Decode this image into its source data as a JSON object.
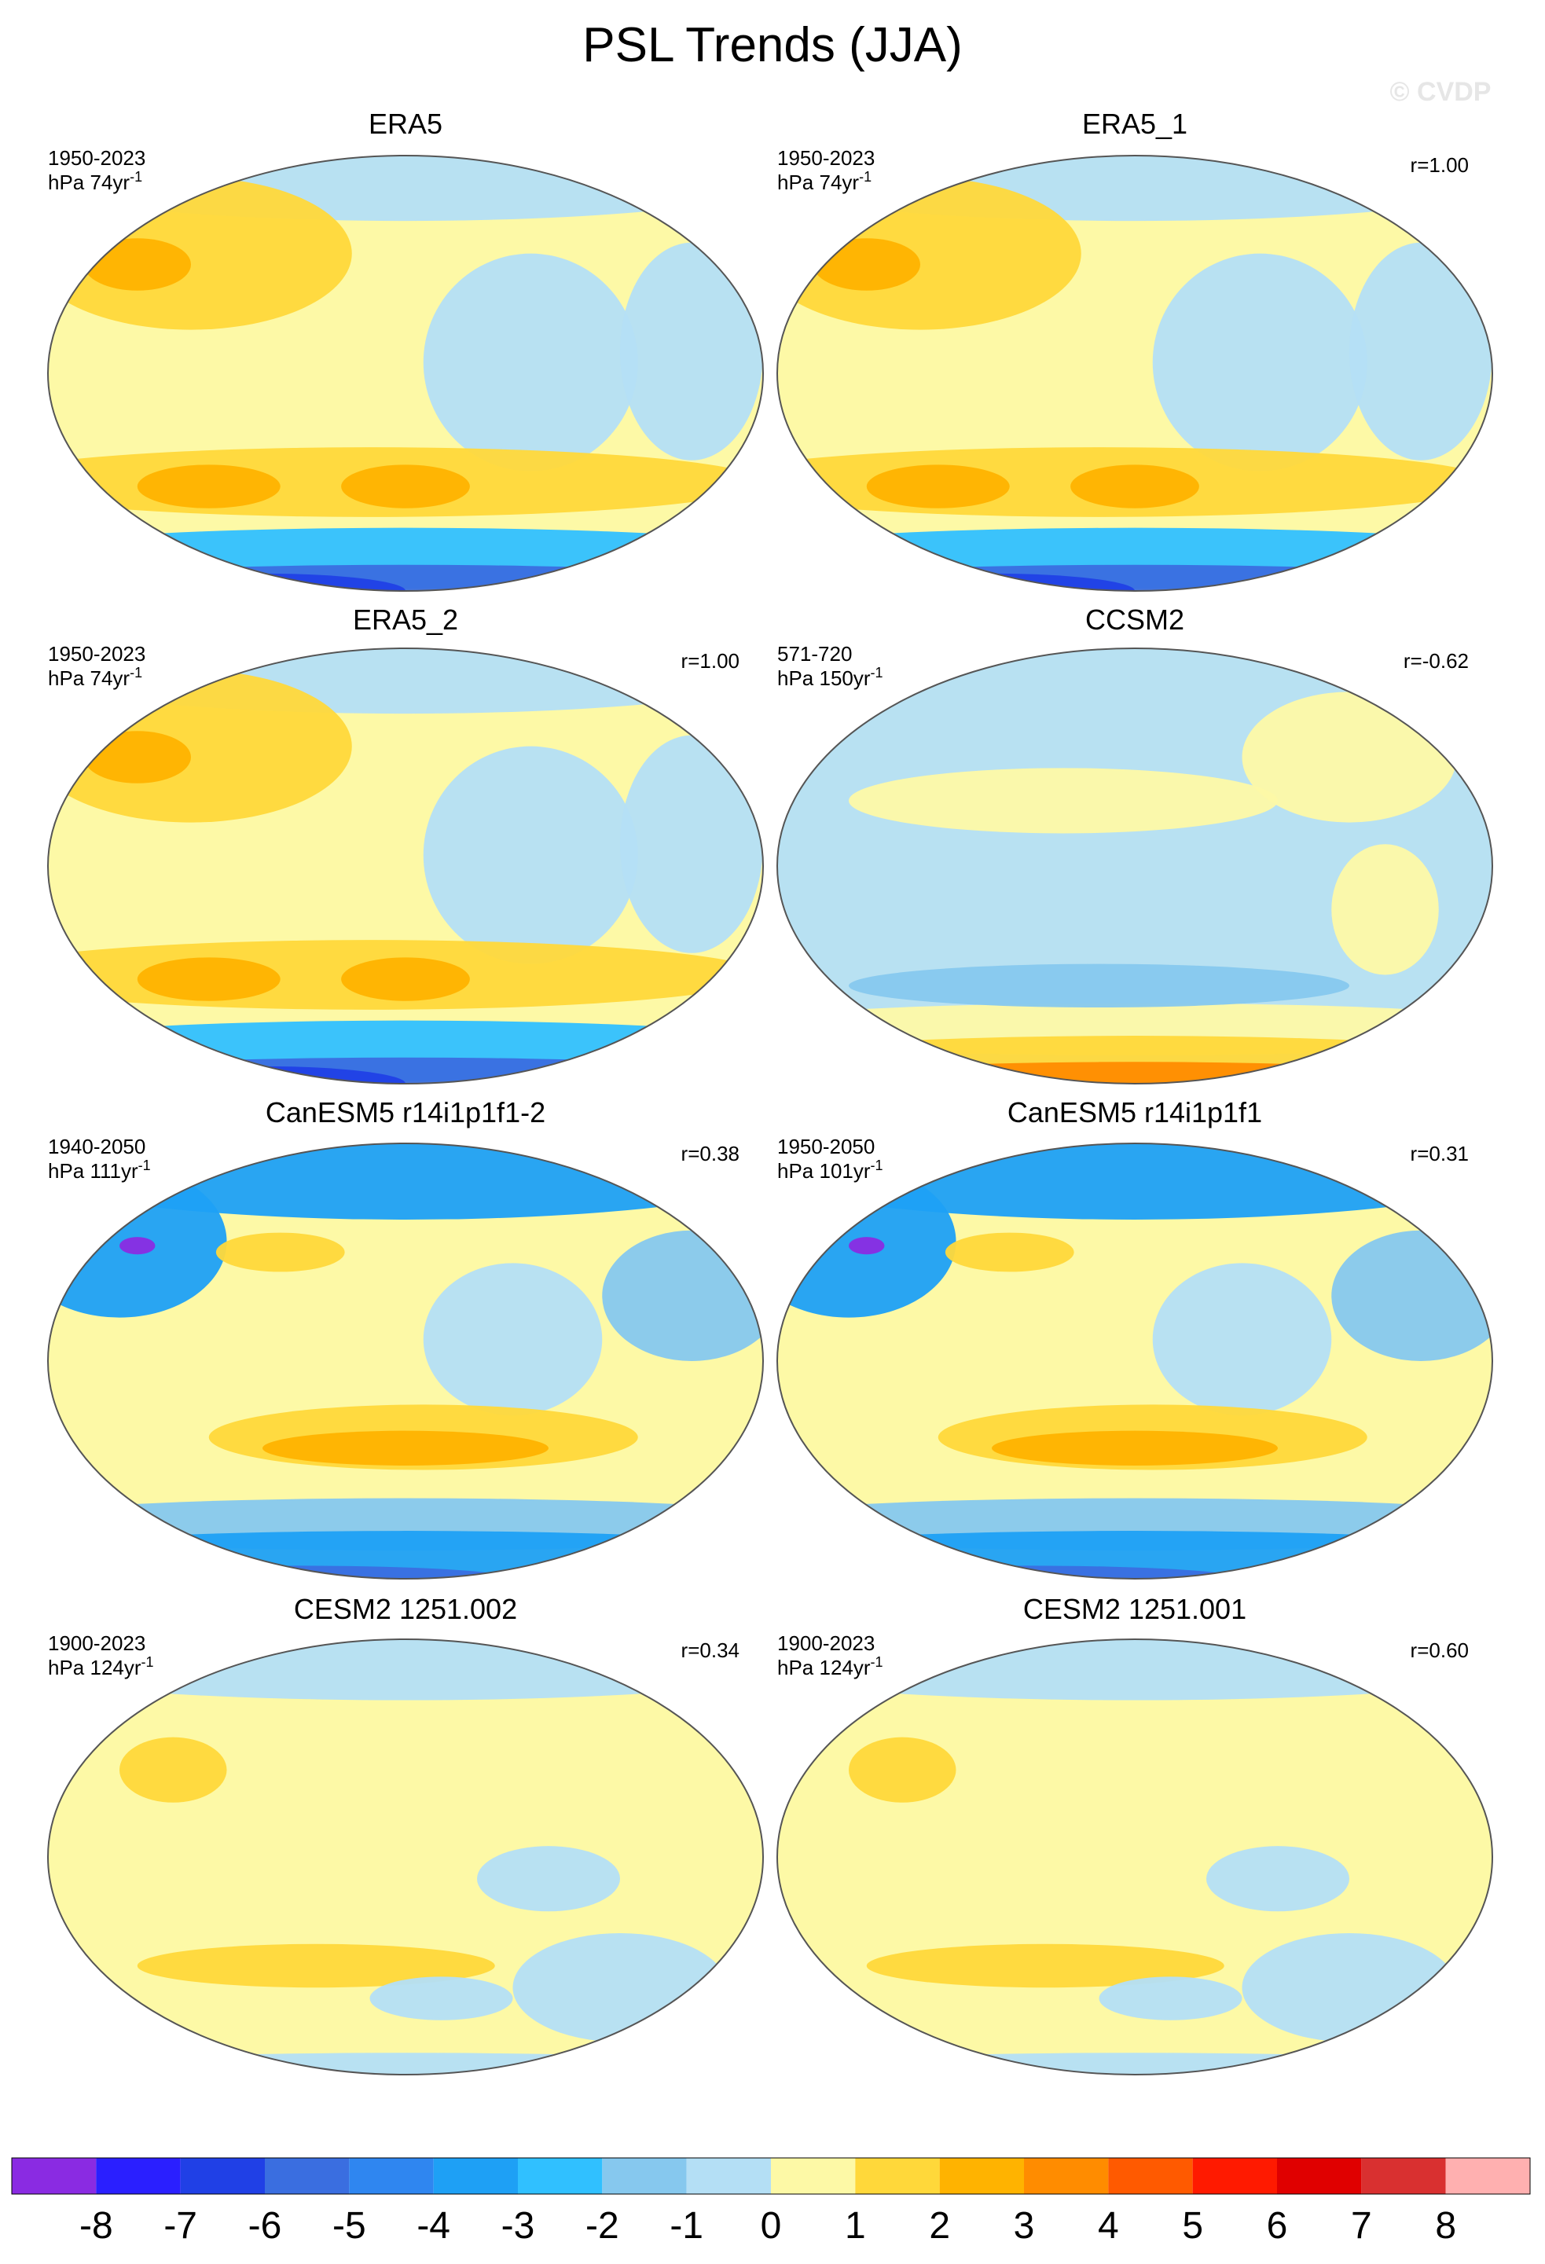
{
  "header": {
    "title": "PSL Trends (JJA)",
    "watermark": "© CVDP"
  },
  "panels": [
    {
      "title": "ERA5",
      "period": "1950-2023",
      "units": "hPa 74yr",
      "exponent": "-1"
    },
    {
      "title": "ERA5_1",
      "period": "1950-2023",
      "units": "hPa 74yr",
      "exponent": "-1",
      "r": "r=1.00"
    },
    {
      "title": "ERA5_2",
      "period": "1950-2023",
      "units": "hPa 74yr",
      "exponent": "-1",
      "r": "r=1.00"
    },
    {
      "title": "CCSM2",
      "period": "571-720",
      "units": "hPa 150yr",
      "exponent": "-1",
      "r": "r=-0.62"
    },
    {
      "title": "CanESM5 r14i1p1f1-2",
      "period": "1940-2050",
      "units": "hPa 111yr",
      "exponent": "-1",
      "r": "r=0.38"
    },
    {
      "title": "CanESM5 r14i1p1f1",
      "period": "1950-2050",
      "units": "hPa 101yr",
      "exponent": "-1",
      "r": "r=0.31"
    },
    {
      "title": "CESM2 1251.002",
      "period": "1900-2023",
      "units": "hPa 124yr",
      "exponent": "-1",
      "r": "r=0.34"
    },
    {
      "title": "CESM2 1251.001",
      "period": "1900-2023",
      "units": "hPa 124yr",
      "exponent": "-1",
      "r": "r=0.60"
    }
  ],
  "colorbar": {
    "colors": [
      "#8a2be2",
      "#2a1fff",
      "#2040e6",
      "#3a6ee0",
      "#2f86f0",
      "#1ea0f5",
      "#30c0ff",
      "#86c8ee",
      "#b4dff5",
      "#fdf9a6",
      "#ffd83a",
      "#ffb300",
      "#ff8c00",
      "#ff5a00",
      "#ff1a00",
      "#e00000",
      "#d93030",
      "#ffb0b0"
    ],
    "labels": [
      "-8",
      "-7",
      "-6",
      "-5",
      "-4",
      "-3",
      "-2",
      "-1",
      "0",
      "1",
      "2",
      "3",
      "4",
      "5",
      "6",
      "7",
      "8"
    ]
  }
}
